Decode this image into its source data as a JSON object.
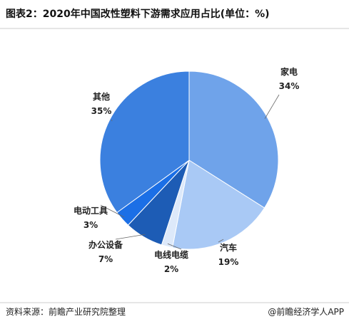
{
  "chart_data": {
    "type": "pie",
    "title": "图表2：2020年中国改性塑料下游需求应用占比(单位：%)",
    "categories": [
      "家电",
      "汽车",
      "电线电缆",
      "办公设备",
      "电动工具",
      "其他"
    ],
    "values": [
      34,
      19,
      2,
      7,
      3,
      35
    ],
    "value_labels": [
      "34%",
      "19%",
      "2%",
      "7%",
      "3%",
      "35%"
    ],
    "colors": [
      "#6fa3ea",
      "#a9c9f5",
      "#dde9fa",
      "#1d5cb5",
      "#1b6fe6",
      "#3b80df"
    ],
    "source": "资料来源：前瞻产业研究院整理",
    "footer": "@前瞻经济学人APP"
  }
}
